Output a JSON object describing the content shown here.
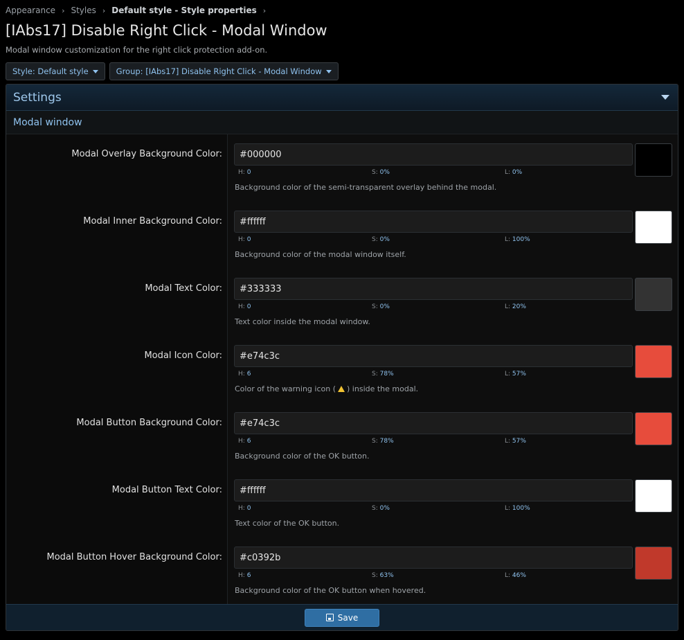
{
  "breadcrumb": [
    "Appearance",
    "Styles",
    "Default style - Style properties"
  ],
  "page": {
    "title": "[IAbs17] Disable Right Click - Modal Window",
    "description": "Modal window customization for the right click protection add-on."
  },
  "filters": {
    "style": "Style: Default style",
    "group": "Group: [IAbs17] Disable Right Click - Modal Window"
  },
  "panel": {
    "title": "Settings",
    "section": "Modal window"
  },
  "properties": [
    {
      "label": "Modal Overlay Background Color:",
      "value": "#000000",
      "swatch": "#000000",
      "h_label": "H:",
      "h": "0",
      "s_label": "S:",
      "s": "0%",
      "l_label": "L:",
      "l": "0%",
      "hint": "Background color of the semi-transparent overlay behind the modal."
    },
    {
      "label": "Modal Inner Background Color:",
      "value": "#ffffff",
      "swatch": "#ffffff",
      "h_label": "H:",
      "h": "0",
      "s_label": "S:",
      "s": "0%",
      "l_label": "L:",
      "l": "100%",
      "hint": "Background color of the modal window itself."
    },
    {
      "label": "Modal Text Color:",
      "value": "#333333",
      "swatch": "#333333",
      "h_label": "H:",
      "h": "0",
      "s_label": "S:",
      "s": "0%",
      "l_label": "L:",
      "l": "20%",
      "hint": "Text color inside the modal window."
    },
    {
      "label": "Modal Icon Color:",
      "value": "#e74c3c",
      "swatch": "#e74c3c",
      "h_label": "H:",
      "h": "6",
      "s_label": "S:",
      "s": "78%",
      "l_label": "L:",
      "l": "57%",
      "hint_pre": "Color of the warning icon (",
      "hint_post": ") inside the modal."
    },
    {
      "label": "Modal Button Background Color:",
      "value": "#e74c3c",
      "swatch": "#e74c3c",
      "h_label": "H:",
      "h": "6",
      "s_label": "S:",
      "s": "78%",
      "l_label": "L:",
      "l": "57%",
      "hint": "Background color of the OK button."
    },
    {
      "label": "Modal Button Text Color:",
      "value": "#ffffff",
      "swatch": "#ffffff",
      "h_label": "H:",
      "h": "0",
      "s_label": "S:",
      "s": "0%",
      "l_label": "L:",
      "l": "100%",
      "hint": "Text color of the OK button."
    },
    {
      "label": "Modal Button Hover Background Color:",
      "value": "#c0392b",
      "swatch": "#c0392b",
      "h_label": "H:",
      "h": "6",
      "s_label": "S:",
      "s": "63%",
      "l_label": "L:",
      "l": "46%",
      "hint": "Background color of the OK button when hovered."
    }
  ],
  "footer": {
    "save_label": "Save"
  },
  "icons": {
    "breadcrumb_separator": "chevron-right-icon",
    "collapse": "caret-down-icon",
    "warning": "warning-icon",
    "save": "floppy-disk-icon"
  }
}
